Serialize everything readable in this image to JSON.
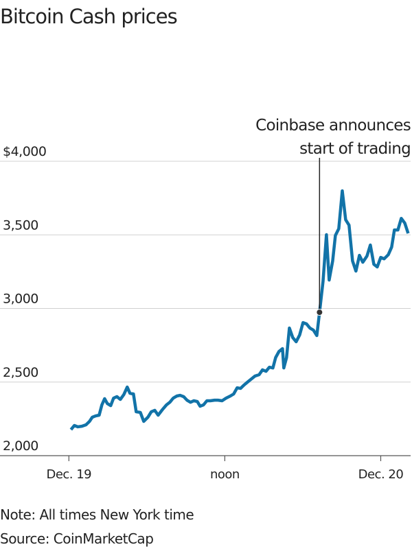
{
  "chart_data": {
    "type": "line",
    "title": "Bitcoin Cash prices",
    "x": [
      0.16,
      0.42,
      0.69,
      1.0,
      1.32,
      1.59,
      1.8,
      2.06,
      2.33,
      2.54,
      2.75,
      2.96,
      3.22,
      3.44,
      3.7,
      3.96,
      4.23,
      4.49,
      4.7,
      4.97,
      5.18,
      5.5,
      5.76,
      6.08,
      6.34,
      6.61,
      6.87,
      7.19,
      7.51,
      7.77,
      8.03,
      8.3,
      8.56,
      8.83,
      9.09,
      9.36,
      9.62,
      9.88,
      10.1,
      10.36,
      10.62,
      10.89,
      11.21,
      11.47,
      11.79,
      12.1,
      12.42,
      12.68,
      12.95,
      13.21,
      13.48,
      13.79,
      14.06,
      14.32,
      14.64,
      14.9,
      15.17,
      15.43,
      15.7,
      15.91,
      16.17,
      16.44,
      16.54,
      16.75,
      16.97,
      17.23,
      17.49,
      17.76,
      18.02,
      18.29,
      18.55,
      18.82,
      19.08,
      19.29,
      19.56,
      19.82,
      20.03,
      20.3,
      20.51,
      20.77,
      21.04,
      21.3,
      21.56,
      21.83,
      22.09,
      22.36,
      22.62,
      22.94,
      23.2,
      23.47,
      23.73,
      24.0,
      24.26,
      24.58,
      24.84,
      25.05,
      25.32,
      25.58,
      25.85,
      26.11
    ],
    "series": [
      {
        "name": "Bitcoin Cash",
        "color": "#1273a8",
        "values": [
          2177,
          2205,
          2196,
          2200,
          2210,
          2233,
          2261,
          2270,
          2275,
          2345,
          2387,
          2354,
          2340,
          2391,
          2401,
          2382,
          2415,
          2466,
          2424,
          2419,
          2298,
          2294,
          2233,
          2261,
          2298,
          2308,
          2275,
          2312,
          2345,
          2363,
          2391,
          2405,
          2410,
          2401,
          2377,
          2363,
          2373,
          2368,
          2336,
          2345,
          2373,
          2373,
          2377,
          2377,
          2373,
          2391,
          2405,
          2419,
          2461,
          2457,
          2480,
          2503,
          2522,
          2541,
          2550,
          2583,
          2573,
          2601,
          2596,
          2666,
          2708,
          2727,
          2596,
          2666,
          2867,
          2802,
          2774,
          2820,
          2904,
          2895,
          2867,
          2853,
          2816,
          2974,
          3184,
          3501,
          3193,
          3323,
          3496,
          3542,
          3799,
          3603,
          3566,
          3323,
          3254,
          3361,
          3314,
          3356,
          3431,
          3300,
          3282,
          3347,
          3337,
          3365,
          3417,
          3533,
          3533,
          3612,
          3580,
          3510
        ]
      }
    ],
    "xlim": [
      -5.3,
      26.3
    ],
    "xticks": [
      {
        "value": 0,
        "label": "Dec. 19"
      },
      {
        "value": 12,
        "label": "noon"
      },
      {
        "value": 24,
        "label": "Dec. 20"
      }
    ],
    "ylim": [
      2000,
      4000
    ],
    "yticks": [
      {
        "value": 2000,
        "label": "2,000"
      },
      {
        "value": 2500,
        "label": "2,500"
      },
      {
        "value": 3000,
        "label": "3,000"
      },
      {
        "value": 3500,
        "label": "3,500"
      },
      {
        "value": 4000,
        "label": "$4,000"
      }
    ],
    "grid": true,
    "annotation": {
      "text": [
        "Coinbase announces",
        "start of trading"
      ],
      "x": 19.29,
      "y": 2974
    },
    "note": "Note: All times New York time",
    "source": "Source: CoinMarketCap"
  }
}
